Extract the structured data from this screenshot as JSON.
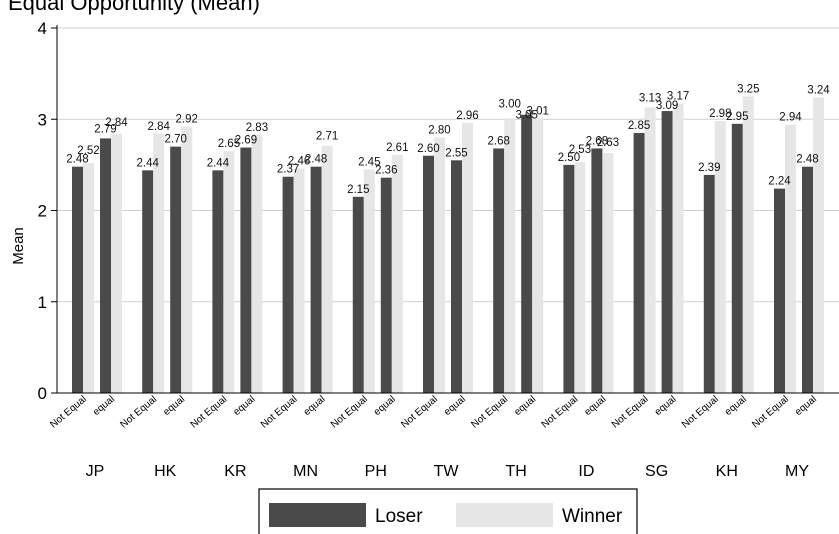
{
  "chart_data": {
    "type": "bar",
    "title": "Equal Opportunity (Mean)",
    "ylabel": "Mean",
    "ylim": [
      0,
      4
    ],
    "yticks": [
      "0",
      "1",
      "2",
      "3",
      "4"
    ],
    "grid": true,
    "legend_position": "bottom",
    "groups": [
      "JP",
      "HK",
      "KR",
      "MN",
      "PH",
      "TW",
      "TH",
      "ID",
      "SG",
      "KH",
      "MY"
    ],
    "subcategories": [
      "Not Equal",
      "equal"
    ],
    "series": [
      {
        "name": "Loser",
        "color": "#4a4a4a",
        "values": [
          2.48,
          2.79,
          2.44,
          2.7,
          2.44,
          2.69,
          2.37,
          2.48,
          2.15,
          2.36,
          2.6,
          2.55,
          2.68,
          3.05,
          2.5,
          2.68,
          2.85,
          3.09,
          2.39,
          2.95,
          2.24,
          2.48
        ],
        "labels": [
          "2.48",
          "2.79",
          "2.44",
          "2.70",
          "2.44",
          "2.69",
          "2.37",
          "2.48",
          "2.15",
          "2.36",
          "2.60",
          "2.55",
          "2.68",
          "3.05",
          "2.50",
          "2.68",
          "2.85",
          "3.09",
          "2.39",
          "2.95",
          "2.24",
          "2.48"
        ]
      },
      {
        "name": "Winner",
        "color": "#e6e6e6",
        "values": [
          2.52,
          2.84,
          2.84,
          2.92,
          2.65,
          2.83,
          2.46,
          2.71,
          2.45,
          2.61,
          2.8,
          2.96,
          3.0,
          3.01,
          2.53,
          2.63,
          3.13,
          3.17,
          2.98,
          3.25,
          2.94,
          3.24
        ],
        "labels": [
          "2.52",
          "2.84",
          "2.84",
          "2.92",
          "2.65",
          "2.83",
          "2.46",
          "2.71",
          "2.45",
          "2.61",
          "2.80",
          "2.96",
          "3.00",
          "3.01",
          "2.53",
          "2.63",
          "3.13",
          "3.17",
          "2.98",
          "3.25",
          "2.94",
          "3.24"
        ]
      }
    ]
  }
}
